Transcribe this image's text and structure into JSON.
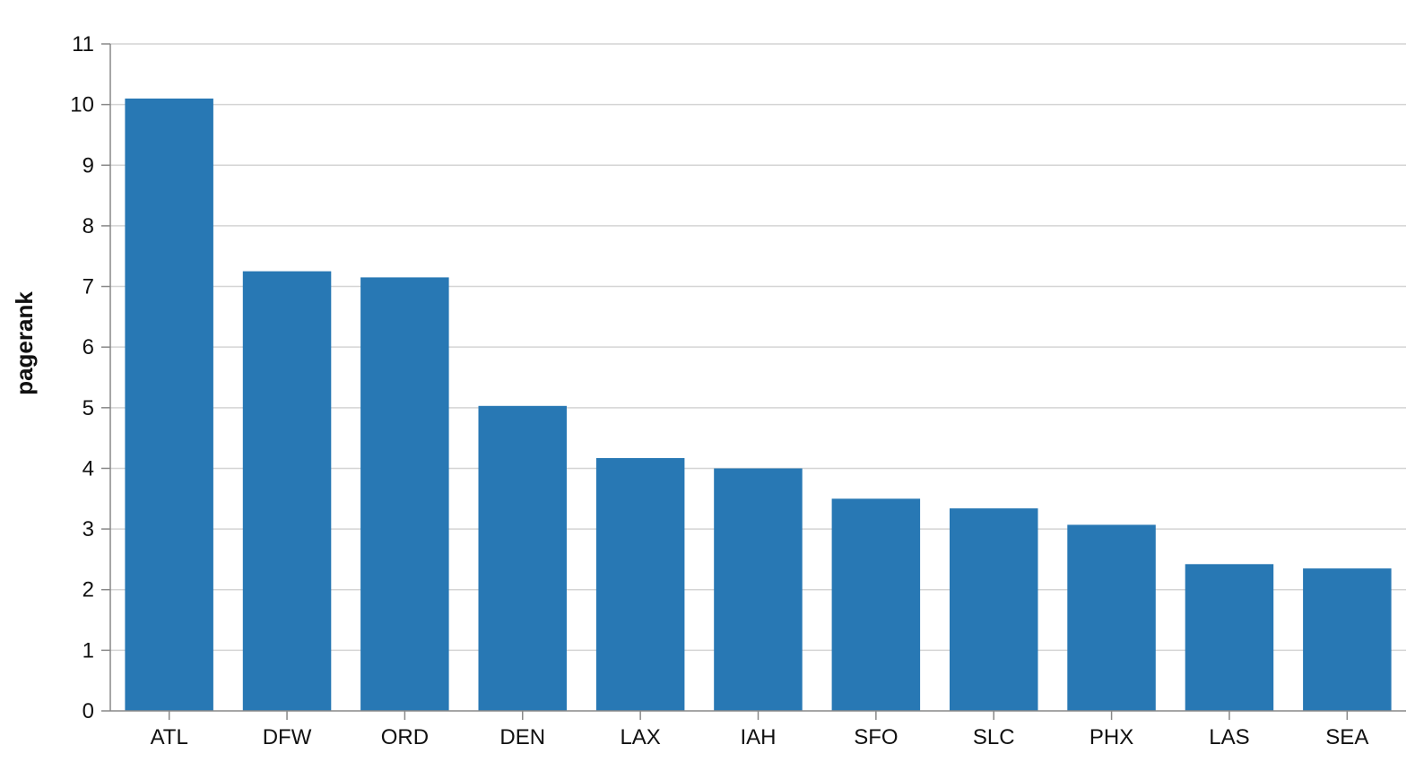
{
  "chart_data": {
    "type": "bar",
    "title": "",
    "xlabel": "",
    "ylabel": "pagerank",
    "ylim": [
      0,
      11
    ],
    "yticks": [
      0,
      1,
      2,
      3,
      4,
      5,
      6,
      7,
      8,
      9,
      10,
      11
    ],
    "grid": true,
    "bar_color": "#2878b4",
    "categories": [
      "ATL",
      "DFW",
      "ORD",
      "DEN",
      "LAX",
      "IAH",
      "SFO",
      "SLC",
      "PHX",
      "LAS",
      "SEA"
    ],
    "values": [
      10.1,
      7.25,
      7.15,
      5.03,
      4.17,
      4.0,
      3.5,
      3.34,
      3.07,
      2.42,
      2.35
    ]
  }
}
